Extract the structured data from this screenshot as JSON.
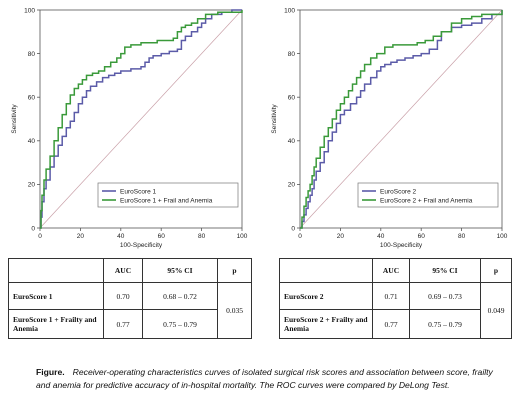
{
  "chart_data": [
    {
      "type": "line",
      "xlabel": "100-Specificity",
      "ylabel": "Sensitivity",
      "xlim": [
        0,
        100
      ],
      "ylim": [
        0,
        100
      ],
      "x_ticks": [
        "0",
        "20",
        "40",
        "60",
        "80",
        "100"
      ],
      "y_ticks": [
        "0",
        "20",
        "40",
        "60",
        "80",
        "100"
      ],
      "grid": false,
      "legend_position": "bottom-right",
      "reference_line": true,
      "series": [
        {
          "name": "EuroScore 1",
          "color": "#5b5ba8",
          "points": [
            [
              0,
              0
            ],
            [
              0.5,
              5
            ],
            [
              1,
              12
            ],
            [
              2,
              18
            ],
            [
              3,
              22
            ],
            [
              5,
              28
            ],
            [
              7,
              33
            ],
            [
              9,
              38
            ],
            [
              11,
              42
            ],
            [
              13,
              46
            ],
            [
              15,
              49
            ],
            [
              17,
              53
            ],
            [
              19,
              57
            ],
            [
              21,
              60
            ],
            [
              23,
              63
            ],
            [
              25,
              65
            ],
            [
              28,
              67
            ],
            [
              31,
              69
            ],
            [
              34,
              70
            ],
            [
              37,
              71
            ],
            [
              40,
              72
            ],
            [
              45,
              73
            ],
            [
              50,
              74
            ],
            [
              52,
              76
            ],
            [
              54,
              78
            ],
            [
              56,
              79
            ],
            [
              60,
              80
            ],
            [
              64,
              81
            ],
            [
              68,
              82
            ],
            [
              70,
              86
            ],
            [
              72,
              88
            ],
            [
              75,
              90
            ],
            [
              78,
              92
            ],
            [
              80,
              94
            ],
            [
              82,
              96
            ],
            [
              85,
              98
            ],
            [
              90,
              99
            ],
            [
              95,
              100
            ],
            [
              100,
              100
            ]
          ]
        },
        {
          "name": "EuroScore 1 + Frail and Anemia",
          "color": "#3a9a3a",
          "points": [
            [
              0,
              0
            ],
            [
              0.5,
              8
            ],
            [
              1,
              15
            ],
            [
              2,
              22
            ],
            [
              3,
              27
            ],
            [
              5,
              33
            ],
            [
              7,
              40
            ],
            [
              9,
              46
            ],
            [
              11,
              52
            ],
            [
              13,
              57
            ],
            [
              15,
              61
            ],
            [
              17,
              64
            ],
            [
              19,
              66
            ],
            [
              21,
              68
            ],
            [
              23,
              70
            ],
            [
              26,
              71
            ],
            [
              29,
              72
            ],
            [
              32,
              74
            ],
            [
              35,
              76
            ],
            [
              38,
              78
            ],
            [
              40,
              80
            ],
            [
              42,
              83
            ],
            [
              45,
              84
            ],
            [
              50,
              85
            ],
            [
              55,
              85
            ],
            [
              58,
              86
            ],
            [
              62,
              86
            ],
            [
              66,
              87
            ],
            [
              68,
              90
            ],
            [
              70,
              92
            ],
            [
              72,
              93
            ],
            [
              75,
              94
            ],
            [
              78,
              96
            ],
            [
              82,
              98
            ],
            [
              88,
              99
            ],
            [
              100,
              100
            ]
          ]
        }
      ]
    },
    {
      "type": "line",
      "xlabel": "100-Specificity",
      "ylabel": "Sensitivity",
      "xlim": [
        0,
        100
      ],
      "ylim": [
        0,
        100
      ],
      "x_ticks": [
        "0",
        "20",
        "40",
        "60",
        "80",
        "100"
      ],
      "y_ticks": [
        "0",
        "20",
        "40",
        "60",
        "80",
        "100"
      ],
      "grid": false,
      "legend_position": "bottom-right",
      "reference_line": true,
      "series": [
        {
          "name": "EuroScore 2",
          "color": "#5b5ba8",
          "points": [
            [
              0,
              0
            ],
            [
              1,
              3
            ],
            [
              2,
              6
            ],
            [
              3,
              9
            ],
            [
              4,
              12
            ],
            [
              5,
              15
            ],
            [
              6,
              18
            ],
            [
              7,
              22
            ],
            [
              8,
              26
            ],
            [
              10,
              30
            ],
            [
              12,
              35
            ],
            [
              14,
              40
            ],
            [
              16,
              44
            ],
            [
              18,
              48
            ],
            [
              20,
              52
            ],
            [
              22,
              54
            ],
            [
              25,
              57
            ],
            [
              28,
              60
            ],
            [
              30,
              63
            ],
            [
              32,
              66
            ],
            [
              35,
              69
            ],
            [
              38,
              72
            ],
            [
              40,
              74
            ],
            [
              42,
              75
            ],
            [
              45,
              76
            ],
            [
              48,
              77
            ],
            [
              52,
              78
            ],
            [
              56,
              79
            ],
            [
              60,
              80
            ],
            [
              64,
              82
            ],
            [
              68,
              86
            ],
            [
              70,
              90
            ],
            [
              75,
              92
            ],
            [
              80,
              93
            ],
            [
              85,
              94
            ],
            [
              90,
              96
            ],
            [
              95,
              98
            ],
            [
              100,
              100
            ]
          ]
        },
        {
          "name": "EuroScore 2 + Frail and Anemia",
          "color": "#3a9a3a",
          "points": [
            [
              0,
              0
            ],
            [
              1,
              5
            ],
            [
              2,
              10
            ],
            [
              3,
              14
            ],
            [
              4,
              17
            ],
            [
              5,
              20
            ],
            [
              6,
              24
            ],
            [
              7,
              28
            ],
            [
              8,
              32
            ],
            [
              10,
              37
            ],
            [
              12,
              42
            ],
            [
              14,
              46
            ],
            [
              16,
              50
            ],
            [
              18,
              54
            ],
            [
              20,
              57
            ],
            [
              22,
              60
            ],
            [
              24,
              63
            ],
            [
              26,
              66
            ],
            [
              28,
              69
            ],
            [
              30,
              72
            ],
            [
              32,
              75
            ],
            [
              35,
              78
            ],
            [
              38,
              80
            ],
            [
              42,
              83
            ],
            [
              46,
              84
            ],
            [
              50,
              84
            ],
            [
              55,
              84
            ],
            [
              58,
              85
            ],
            [
              62,
              86
            ],
            [
              66,
              88
            ],
            [
              70,
              90
            ],
            [
              75,
              94
            ],
            [
              80,
              96
            ],
            [
              85,
              97
            ],
            [
              90,
              98
            ],
            [
              100,
              100
            ]
          ]
        }
      ]
    }
  ],
  "tables": [
    {
      "headers": [
        "",
        "AUC",
        "95% CI",
        "p"
      ],
      "rows": [
        {
          "label": "EuroScore 1",
          "auc": "0.70",
          "ci": "0.68 – 0.72"
        },
        {
          "label": "EuroScore 1 + Frailty and Anemia",
          "auc": "0.77",
          "ci": "0.75 – 0.79"
        }
      ],
      "p": "0.035"
    },
    {
      "headers": [
        "",
        "AUC",
        "95% CI",
        "p"
      ],
      "rows": [
        {
          "label": "EuroScore 2",
          "auc": "0.71",
          "ci": "0.69 – 0.73"
        },
        {
          "label": "EuroScore 2 + Frailty and Anemia",
          "auc": "0.77",
          "ci": "0.75 – 0.79"
        }
      ],
      "p": "0.049"
    }
  ],
  "caption": {
    "label": "Figure.",
    "text": "Receiver-operating characteristics curves of isolated surgical risk scores and association between score, frailty and anemia for predictive accuracy of in-hospital mortality. The ROC curves were compared by DeLong Test."
  }
}
